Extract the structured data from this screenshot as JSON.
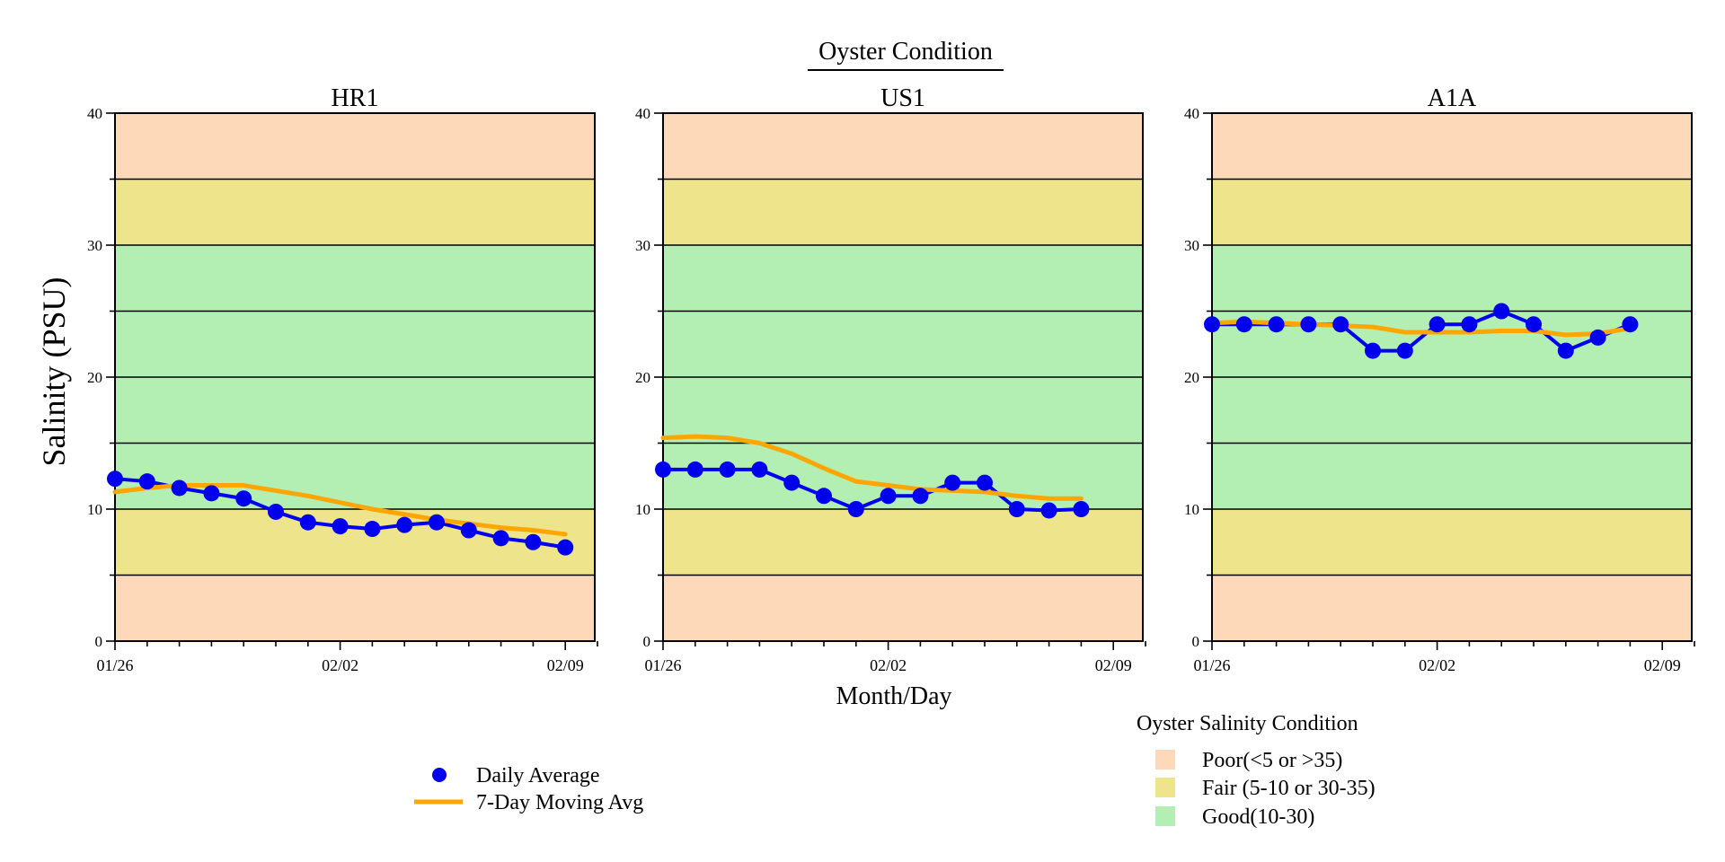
{
  "title": "Oyster Condition",
  "ylabel": "Salinity (PSU)",
  "xlabel": "Month/Day",
  "colors": {
    "poor": "#FDD9B9",
    "fair": "#EEE48B",
    "good": "#B3EFB3",
    "daily": "#0000EE",
    "moving": "#FFA500"
  },
  "legend": {
    "daily_label": "Daily Average",
    "moving_label": "7-Day Moving Avg"
  },
  "condition_legend": {
    "title": "Oyster Salinity Condition",
    "items": [
      {
        "label": "Poor(<5 or >35)",
        "color": "#FDD9B9"
      },
      {
        "label": "Fair (5-10 or 30-35)",
        "color": "#EEE48B"
      },
      {
        "label": "Good(10-30)",
        "color": "#B3EFB3"
      }
    ]
  },
  "chart_data": [
    {
      "type": "line",
      "title": "HR1",
      "x_ticks": [
        "01/26",
        "02/02",
        "02/09"
      ],
      "x_tick_days": [
        0,
        7,
        14
      ],
      "xlim_days": [
        0,
        15
      ],
      "ylim": [
        0,
        40
      ],
      "y_ticks": [
        0,
        10,
        20,
        30,
        40
      ],
      "bands": [
        {
          "from": 0,
          "to": 5,
          "condition": "poor"
        },
        {
          "from": 5,
          "to": 10,
          "condition": "fair"
        },
        {
          "from": 10,
          "to": 30,
          "condition": "good"
        },
        {
          "from": 30,
          "to": 35,
          "condition": "fair"
        },
        {
          "from": 35,
          "to": 40,
          "condition": "poor"
        }
      ],
      "series": [
        {
          "name": "Daily Average",
          "x": [
            "01/26",
            "01/27",
            "01/28",
            "01/29",
            "01/30",
            "01/31",
            "02/01",
            "02/02",
            "02/03",
            "02/04",
            "02/05",
            "02/06",
            "02/07",
            "02/08",
            "02/09"
          ],
          "values": [
            12.3,
            12.1,
            11.6,
            11.2,
            10.8,
            9.8,
            9.0,
            8.7,
            8.5,
            8.8,
            9.0,
            8.4,
            7.8,
            7.5,
            7.1
          ]
        },
        {
          "name": "7-Day Moving Avg",
          "x": [
            "01/26",
            "01/27",
            "01/28",
            "01/29",
            "01/30",
            "01/31",
            "02/01",
            "02/02",
            "02/03",
            "02/04",
            "02/05",
            "02/06",
            "02/07",
            "02/08",
            "02/09"
          ],
          "values": [
            11.3,
            11.6,
            11.8,
            11.8,
            11.8,
            11.4,
            11.0,
            10.5,
            10.0,
            9.6,
            9.2,
            8.9,
            8.6,
            8.4,
            8.1
          ]
        }
      ]
    },
    {
      "type": "line",
      "title": "US1",
      "x_ticks": [
        "01/26",
        "02/02",
        "02/09"
      ],
      "x_tick_days": [
        0,
        7,
        14
      ],
      "xlim_days": [
        0,
        15
      ],
      "ylim": [
        0,
        40
      ],
      "y_ticks": [
        0,
        10,
        20,
        30,
        40
      ],
      "bands": [
        {
          "from": 0,
          "to": 5,
          "condition": "poor"
        },
        {
          "from": 5,
          "to": 10,
          "condition": "fair"
        },
        {
          "from": 10,
          "to": 30,
          "condition": "good"
        },
        {
          "from": 30,
          "to": 35,
          "condition": "fair"
        },
        {
          "from": 35,
          "to": 40,
          "condition": "poor"
        }
      ],
      "series": [
        {
          "name": "Daily Average",
          "x": [
            "01/26",
            "01/27",
            "01/28",
            "01/29",
            "01/30",
            "01/31",
            "02/01",
            "02/02",
            "02/03",
            "02/04",
            "02/05",
            "02/06",
            "02/07",
            "02/08"
          ],
          "values": [
            13.0,
            13.0,
            13.0,
            13.0,
            12.0,
            11.0,
            10.0,
            11.0,
            11.0,
            12.0,
            12.0,
            10.0,
            9.9,
            10.0
          ]
        },
        {
          "name": "7-Day Moving Avg",
          "x": [
            "01/26",
            "01/27",
            "01/28",
            "01/29",
            "01/30",
            "01/31",
            "02/01",
            "02/02",
            "02/03",
            "02/04",
            "02/05",
            "02/06",
            "02/07",
            "02/08"
          ],
          "values": [
            15.4,
            15.5,
            15.4,
            15.0,
            14.2,
            13.1,
            12.1,
            11.8,
            11.5,
            11.4,
            11.3,
            11.0,
            10.8,
            10.8
          ]
        }
      ]
    },
    {
      "type": "line",
      "title": "A1A",
      "x_ticks": [
        "01/26",
        "02/02",
        "02/09"
      ],
      "x_tick_days": [
        0,
        7,
        14
      ],
      "xlim_days": [
        0,
        15
      ],
      "ylim": [
        0,
        40
      ],
      "y_ticks": [
        0,
        10,
        20,
        30,
        40
      ],
      "bands": [
        {
          "from": 0,
          "to": 5,
          "condition": "poor"
        },
        {
          "from": 5,
          "to": 10,
          "condition": "fair"
        },
        {
          "from": 10,
          "to": 30,
          "condition": "good"
        },
        {
          "from": 30,
          "to": 35,
          "condition": "fair"
        },
        {
          "from": 35,
          "to": 40,
          "condition": "poor"
        }
      ],
      "series": [
        {
          "name": "Daily Average",
          "x": [
            "01/26",
            "01/27",
            "01/28",
            "01/29",
            "01/30",
            "01/31",
            "02/01",
            "02/02",
            "02/03",
            "02/04",
            "02/05",
            "02/06",
            "02/07",
            "02/08"
          ],
          "values": [
            24.0,
            24.0,
            24.0,
            24.0,
            24.0,
            22.0,
            22.0,
            24.0,
            24.0,
            25.0,
            24.0,
            22.0,
            23.0,
            24.0
          ]
        },
        {
          "name": "7-Day Moving Avg",
          "x": [
            "01/26",
            "01/27",
            "01/28",
            "01/29",
            "01/30",
            "01/31",
            "02/01",
            "02/02",
            "02/03",
            "02/04",
            "02/05",
            "02/06",
            "02/07",
            "02/08"
          ],
          "values": [
            24.1,
            24.2,
            24.1,
            24.0,
            23.9,
            23.8,
            23.4,
            23.4,
            23.4,
            23.5,
            23.5,
            23.2,
            23.3,
            23.7
          ]
        }
      ]
    }
  ]
}
